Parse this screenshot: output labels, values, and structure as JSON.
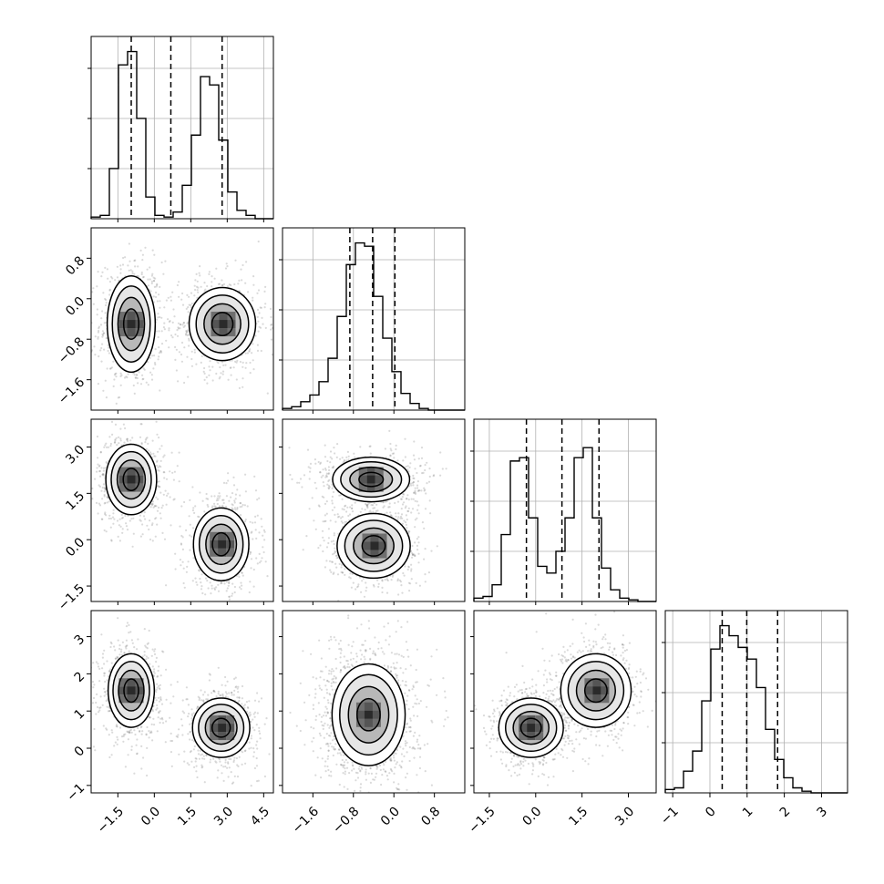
{
  "chart_data": {
    "type": "corner",
    "n_params": 4,
    "colors": {
      "marks": "#000000",
      "grid": "#b0b0b0",
      "scatter": "#555555"
    },
    "grid": true,
    "axes": [
      {
        "range": [
          -2.6,
          4.9
        ],
        "ticks": [
          -1.5,
          0.0,
          1.5,
          3.0,
          4.5
        ],
        "tick_labels": [
          "−1.5",
          "0.0",
          "1.5",
          "3.0",
          "4.5"
        ]
      },
      {
        "range": [
          -2.2,
          1.4
        ],
        "ticks": [
          -1.6,
          -0.8,
          0.0,
          0.8
        ],
        "tick_labels": [
          "−1.6",
          "−0.8",
          "0.0",
          "0.8"
        ]
      },
      {
        "range": [
          -2.0,
          3.9
        ],
        "ticks": [
          -1.5,
          0.0,
          1.5,
          3.0
        ],
        "tick_labels": [
          "−1.5",
          "0.0",
          "1.5",
          "3.0"
        ]
      },
      {
        "range": [
          -1.2,
          3.7
        ],
        "ticks": [
          -1,
          0,
          1,
          2,
          3
        ],
        "tick_labels": [
          "−1",
          "0",
          "1",
          "2",
          "3"
        ]
      }
    ],
    "histograms": [
      {
        "edges_range": [
          -2.6,
          4.9
        ],
        "bins": 20,
        "counts": [
          0.01,
          0.02,
          0.3,
          0.92,
          1.0,
          0.6,
          0.13,
          0.02,
          0.01,
          0.04,
          0.2,
          0.5,
          0.85,
          0.8,
          0.47,
          0.16,
          0.05,
          0.02,
          0.0,
          0.0
        ],
        "quantiles": [
          -0.95,
          0.68,
          2.79
        ]
      },
      {
        "edges_range": [
          -2.2,
          1.4
        ],
        "bins": 20,
        "counts": [
          0.01,
          0.02,
          0.05,
          0.09,
          0.17,
          0.31,
          0.56,
          0.87,
          1.0,
          0.98,
          0.68,
          0.43,
          0.23,
          0.1,
          0.04,
          0.01,
          0.0,
          0.0,
          0.0,
          0.0
        ],
        "quantiles": [
          -0.87,
          -0.42,
          0.02
        ]
      },
      {
        "edges_range": [
          -2.0,
          3.9
        ],
        "bins": 20,
        "counts": [
          0.02,
          0.03,
          0.1,
          0.4,
          0.84,
          0.86,
          0.5,
          0.21,
          0.17,
          0.3,
          0.5,
          0.86,
          0.92,
          0.5,
          0.2,
          0.07,
          0.02,
          0.01,
          0.0,
          0.0
        ],
        "quantiles": [
          -0.3,
          0.85,
          2.05
        ]
      },
      {
        "edges_range": [
          -1.2,
          3.7
        ],
        "bins": 20,
        "counts": [
          0.02,
          0.03,
          0.13,
          0.25,
          0.55,
          0.86,
          1.0,
          0.94,
          0.87,
          0.8,
          0.63,
          0.38,
          0.2,
          0.09,
          0.03,
          0.01,
          0.0,
          0.0,
          0.0,
          0.0
        ],
        "quantiles": [
          0.33,
          0.99,
          1.82
        ]
      }
    ],
    "panels_2d": [
      {
        "x": 0,
        "y": 1,
        "blobs": [
          {
            "cx": -0.95,
            "cy": -0.5,
            "sx": 0.52,
            "sy": 0.5,
            "w": 0.5
          },
          {
            "cx": 2.8,
            "cy": -0.5,
            "sx": 0.72,
            "sy": 0.38,
            "w": 0.5
          }
        ]
      },
      {
        "x": 0,
        "y": 2,
        "blobs": [
          {
            "cx": -0.95,
            "cy": 1.95,
            "sx": 0.55,
            "sy": 0.6,
            "w": 0.5
          },
          {
            "cx": 2.75,
            "cy": -0.15,
            "sx": 0.6,
            "sy": 0.62,
            "w": 0.5
          }
        ]
      },
      {
        "x": 0,
        "y": 3,
        "blobs": [
          {
            "cx": -0.95,
            "cy": 1.55,
            "sx": 0.5,
            "sy": 0.52,
            "w": 0.5
          },
          {
            "cx": 2.75,
            "cy": 0.55,
            "sx": 0.62,
            "sy": 0.42,
            "w": 0.5
          }
        ]
      },
      {
        "x": 1,
        "y": 2,
        "blobs": [
          {
            "cx": -0.45,
            "cy": 1.95,
            "sx": 0.4,
            "sy": 0.38,
            "w": 0.5
          },
          {
            "cx": -0.4,
            "cy": -0.2,
            "sx": 0.38,
            "sy": 0.55,
            "w": 0.5
          }
        ]
      },
      {
        "x": 1,
        "y": 3,
        "blobs": [
          {
            "cx": -0.5,
            "cy": 0.9,
            "sx": 0.38,
            "sy": 0.72,
            "w": 1.0
          }
        ]
      },
      {
        "x": 2,
        "y": 3,
        "blobs": [
          {
            "cx": -0.15,
            "cy": 0.55,
            "sx": 0.55,
            "sy": 0.42,
            "w": 0.5
          },
          {
            "cx": 1.95,
            "cy": 1.55,
            "sx": 0.6,
            "sy": 0.52,
            "w": 0.5
          }
        ]
      }
    ]
  }
}
